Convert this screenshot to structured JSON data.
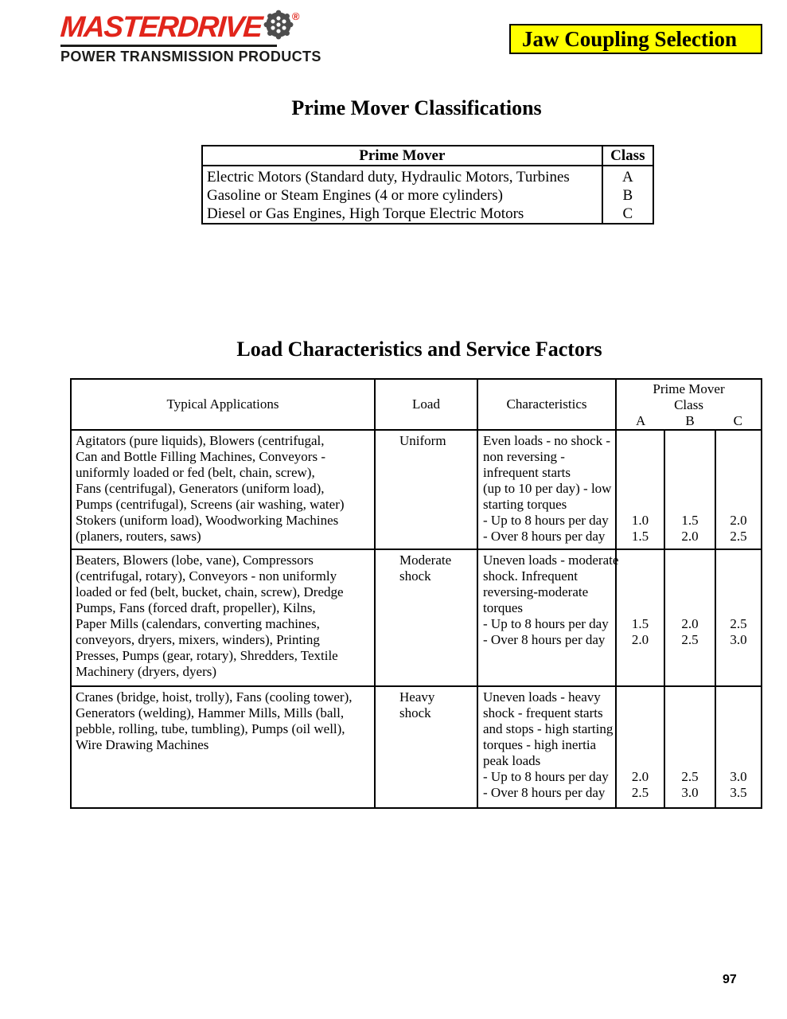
{
  "logo": {
    "brand": "MASTERDRIVE",
    "registered_mark": "®",
    "tagline": "POWER TRANSMISSION PRODUCTS",
    "brand_color": "#e1251b",
    "icon": "sprocket-wheel-icon",
    "icon_color": "#4d4d4d"
  },
  "banner": {
    "label": "Jaw Coupling Selection",
    "bg_color": "#ffff00"
  },
  "section1": {
    "title": "Prime Mover Classifications",
    "table": {
      "headers": [
        "Prime Mover",
        "Class"
      ],
      "rows": [
        {
          "prime_mover": "Electric Motors (Standard duty, Hydraulic Motors, Turbines",
          "class": "A"
        },
        {
          "prime_mover": "Gasoline or Steam Engines (4 or more cylinders)",
          "class": "B"
        },
        {
          "prime_mover": "Diesel or Gas Engines, High Torque Electric Motors",
          "class": "C"
        }
      ]
    }
  },
  "section2": {
    "title": "Load Characteristics and Service Factors",
    "table": {
      "headers": {
        "applications": "Typical Applications",
        "load": "Load",
        "characteristics": "Characteristics",
        "class_group": [
          "Prime Mover",
          "Class"
        ],
        "class_cols": [
          "A",
          "B",
          "C"
        ]
      },
      "rows": [
        {
          "applications_lines": [
            "Agitators (pure liquids), Blowers (centrifugal,",
            "Can and Bottle Filling Machines, Conveyors -",
            "uniformly loaded or fed (belt, chain, screw),",
            "Fans (centrifugal), Generators (uniform load),",
            "Pumps (centrifugal), Screens (air washing, water)",
            "Stokers (uniform load), Woodworking Machines",
            "(planers, routers, saws)"
          ],
          "load_lines": [
            "Uniform"
          ],
          "characteristics_lines": [
            "Even loads - no shock -",
            "non reversing -",
            "infrequent starts",
            "(up to 10 per day) - low",
            "starting torques",
            "- Up to 8 hours per day",
            "- Over 8 hours per day"
          ],
          "A": [
            "1.0",
            "1.5"
          ],
          "B": [
            "1.5",
            "2.0"
          ],
          "C": [
            "2.0",
            "2.5"
          ]
        },
        {
          "applications_lines": [
            "Beaters, Blowers (lobe, vane), Compressors",
            "(centrifugal, rotary), Conveyors - non uniformly",
            "loaded or fed (belt, bucket, chain, screw), Dredge",
            "Pumps, Fans (forced draft, propeller), Kilns,",
            "Paper Mills (calendars, converting machines,",
            "conveyors, dryers, mixers, winders), Printing",
            "Presses, Pumps (gear, rotary), Shredders, Textile",
            "Machinery (dryers, dyers)"
          ],
          "load_lines": [
            "Moderate",
            "shock"
          ],
          "characteristics_lines": [
            "Uneven loads - moderate",
            "shock. Infrequent",
            "reversing-moderate",
            "torques",
            "- Up to 8 hours per day",
            "- Over 8 hours per day"
          ],
          "A": [
            "1.5",
            "2.0"
          ],
          "B": [
            "2.0",
            "2.5"
          ],
          "C": [
            "2.5",
            "3.0"
          ]
        },
        {
          "applications_lines": [
            "Cranes (bridge, hoist, trolly), Fans (cooling tower),",
            "Generators (welding), Hammer Mills, Mills (ball,",
            "pebble, rolling, tube, tumbling), Pumps (oil well),",
            "Wire Drawing Machines"
          ],
          "load_lines": [
            "Heavy",
            "shock"
          ],
          "characteristics_lines": [
            "Uneven loads - heavy",
            "shock - frequent starts",
            "and stops - high starting",
            "torques - high inertia",
            "peak loads",
            "- Up to 8 hours per day",
            "- Over 8 hours per day"
          ],
          "A": [
            "2.0",
            "2.5"
          ],
          "B": [
            "2.5",
            "3.0"
          ],
          "C": [
            "3.0",
            "3.5"
          ]
        }
      ]
    }
  },
  "page": {
    "number": "97"
  }
}
